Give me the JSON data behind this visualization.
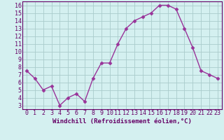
{
  "x": [
    0,
    1,
    2,
    3,
    4,
    5,
    6,
    7,
    8,
    9,
    10,
    11,
    12,
    13,
    14,
    15,
    16,
    17,
    18,
    19,
    20,
    21,
    22,
    23
  ],
  "y": [
    7.5,
    6.5,
    5.0,
    5.5,
    3.0,
    4.0,
    4.5,
    3.5,
    6.5,
    8.5,
    8.5,
    11.0,
    13.0,
    14.0,
    14.5,
    15.0,
    16.0,
    16.0,
    15.5,
    13.0,
    10.5,
    7.5,
    7.0,
    6.5
  ],
  "line_color": "#993399",
  "marker": "D",
  "markersize": 2.5,
  "linewidth": 1.0,
  "bg_color": "#d4f0f0",
  "grid_color": "#aacccc",
  "xlim": [
    -0.5,
    23.5
  ],
  "ylim": [
    2.5,
    16.5
  ],
  "yticks": [
    3,
    4,
    5,
    6,
    7,
    8,
    9,
    10,
    11,
    12,
    13,
    14,
    15,
    16
  ],
  "xticks": [
    0,
    1,
    2,
    3,
    4,
    5,
    6,
    7,
    8,
    9,
    10,
    11,
    12,
    13,
    14,
    15,
    16,
    17,
    18,
    19,
    20,
    21,
    22,
    23
  ],
  "tick_label_color": "#660066",
  "axis_label_color": "#660066",
  "xlabel": "Windchill (Refroidissement éolien,°C)",
  "xlabel_fontsize": 6.5,
  "tick_fontsize": 6.0,
  "spine_color": "#660066"
}
